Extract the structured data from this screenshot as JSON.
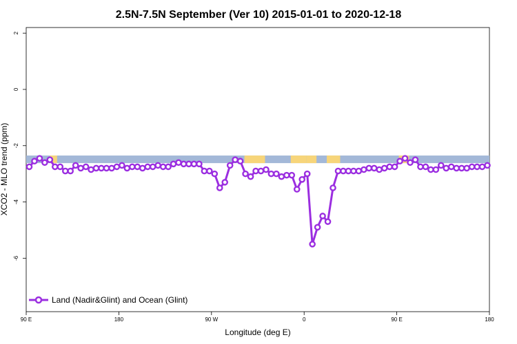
{
  "chart_data": {
    "type": "line",
    "title": "2.5N-7.5N September (Ver 10)   2015-01-01 to 2020-12-18",
    "xlabel": "Longitude (deg E)",
    "ylabel": "XCO2 - MLO trend (ppm)",
    "x_ticks": [
      {
        "value": 90,
        "label": "90 E"
      },
      {
        "value": 180,
        "label": "180"
      },
      {
        "value": 270,
        "label": "90 W"
      },
      {
        "value": 360,
        "label": "0"
      },
      {
        "value": 450,
        "label": "90 E"
      },
      {
        "value": 540,
        "label": "180"
      }
    ],
    "y_ticks": [
      2,
      0,
      -2,
      -4,
      -6
    ],
    "xlim": [
      90,
      540
    ],
    "ylim": [
      -7.9,
      2.2
    ],
    "grid": false,
    "legend_position": "bottom-left",
    "series": [
      {
        "name": "Land (Nadir&Glint) and Ocean (Glint)",
        "color": "#9b2ee0",
        "x": [
          93,
          98,
          103,
          108,
          113,
          118,
          123,
          128,
          133,
          138,
          143,
          148,
          153,
          158,
          163,
          168,
          173,
          178,
          183,
          188,
          193,
          198,
          203,
          208,
          213,
          218,
          223,
          228,
          233,
          238,
          243,
          248,
          253,
          258,
          263,
          268,
          273,
          278,
          283,
          288,
          293,
          298,
          303,
          308,
          313,
          318,
          323,
          328,
          333,
          338,
          343,
          348,
          353,
          358,
          363,
          368,
          373,
          378,
          383,
          388,
          393,
          398,
          403,
          408,
          413,
          418,
          423,
          428,
          433,
          438,
          443,
          448,
          453,
          458,
          463,
          468,
          473,
          478,
          483,
          488,
          493,
          498,
          503,
          508,
          513,
          518,
          523,
          528,
          533,
          538
        ],
        "y": [
          -2.75,
          -2.55,
          -2.45,
          -2.6,
          -2.5,
          -2.75,
          -2.75,
          -2.9,
          -2.9,
          -2.7,
          -2.8,
          -2.75,
          -2.85,
          -2.8,
          -2.8,
          -2.8,
          -2.8,
          -2.75,
          -2.7,
          -2.8,
          -2.75,
          -2.75,
          -2.8,
          -2.75,
          -2.75,
          -2.7,
          -2.75,
          -2.75,
          -2.65,
          -2.6,
          -2.65,
          -2.65,
          -2.65,
          -2.65,
          -2.9,
          -2.9,
          -3.0,
          -3.5,
          -3.3,
          -2.7,
          -2.5,
          -2.55,
          -3.0,
          -3.1,
          -2.9,
          -2.9,
          -2.85,
          -3.0,
          -3.0,
          -3.1,
          -3.05,
          -3.05,
          -3.55,
          -3.2,
          -3.0,
          -5.5,
          -4.9,
          -4.5,
          -4.7,
          -3.5,
          -2.9,
          -2.9,
          -2.9,
          -2.9,
          -2.9,
          -2.85,
          -2.8,
          -2.8,
          -2.85,
          -2.8,
          -2.75,
          -2.75,
          -2.55,
          -2.45,
          -2.6,
          -2.5,
          -2.75,
          -2.75,
          -2.85,
          -2.85,
          -2.7,
          -2.8,
          -2.75,
          -2.8,
          -2.8,
          -2.8,
          -2.75,
          -2.75,
          -2.75,
          -2.7
        ]
      }
    ],
    "surface_band": {
      "y_top": -2.35,
      "y_bottom": -2.62,
      "ocean_color": "#a3b8d8",
      "land_color": "#f7d57a",
      "land_segments": [
        [
          113,
          120
        ],
        [
          302,
          322
        ],
        [
          347,
          362
        ],
        [
          362,
          372
        ],
        [
          382,
          395
        ],
        [
          452,
          462
        ]
      ]
    },
    "background_color": "#ffffff"
  }
}
